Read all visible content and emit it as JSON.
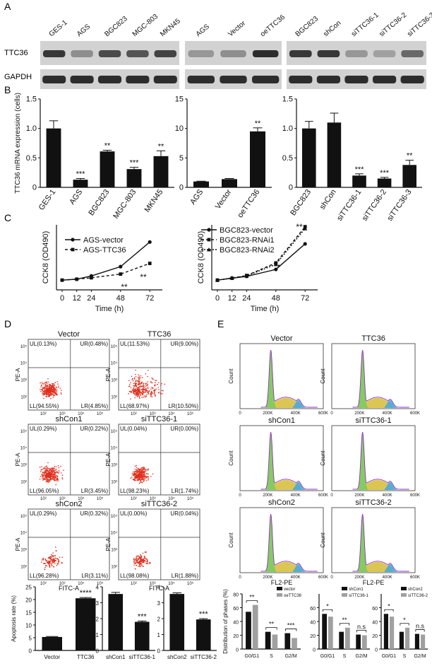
{
  "panel_labels": {
    "a": "A",
    "b": "B",
    "c": "C",
    "d": "D",
    "e": "E"
  },
  "blots": [
    {
      "lanes": [
        "GES-1",
        "AGS",
        "BGC823",
        "MGC-803",
        "MKN45"
      ],
      "ttc36": [
        0.8,
        0.35,
        0.7,
        0.65,
        0.75
      ],
      "gapdh": [
        0.85,
        0.85,
        0.85,
        0.85,
        0.85
      ]
    },
    {
      "lanes": [
        "AGS",
        "Vector",
        "oeTTC36"
      ],
      "ttc36": [
        0.3,
        0.35,
        0.85
      ],
      "gapdh": [
        0.85,
        0.85,
        0.85
      ]
    },
    {
      "lanes": [
        "BGC823",
        "shCon",
        "siTTC36-1",
        "siTTC36-2",
        "siTTC36-3"
      ],
      "ttc36": [
        0.8,
        0.8,
        0.3,
        0.25,
        0.55
      ],
      "gapdh": [
        0.85,
        0.85,
        0.85,
        0.85,
        0.85
      ]
    }
  ],
  "blot_row_labels": {
    "ttc36": "TTC36",
    "gapdh": "GAPDH"
  },
  "chart_data": [
    {
      "id": "B1",
      "type": "bar",
      "ylabel": "TTC36 mRNA expression (cells)",
      "ylim": [
        0,
        1.5
      ],
      "yticks": [
        "0",
        "0.5",
        "1.0",
        "1.5"
      ],
      "categories": [
        "GES-1",
        "AGS",
        "BGC823",
        "MGC-803",
        "MKN45"
      ],
      "values": [
        1.0,
        0.13,
        0.61,
        0.31,
        0.53
      ],
      "errors": [
        0.13,
        0.02,
        0.02,
        0.03,
        0.09
      ],
      "sig": [
        "",
        "***",
        "**",
        "***",
        "**"
      ]
    },
    {
      "id": "B2",
      "type": "bar",
      "ylim": [
        0,
        15
      ],
      "yticks": [
        "0",
        "5",
        "10",
        "15"
      ],
      "categories": [
        "AGS",
        "Vector",
        "oeTTC36"
      ],
      "values": [
        1.0,
        1.4,
        9.5
      ],
      "errors": [
        0.05,
        0.1,
        0.6
      ],
      "sig": [
        "",
        "",
        "**"
      ]
    },
    {
      "id": "B3",
      "type": "bar",
      "ylim": [
        0,
        1.5
      ],
      "yticks": [
        "0",
        "0.5",
        "1.0",
        "1.5"
      ],
      "categories": [
        "BGC823",
        "shCon",
        "siTTC36-1",
        "siTTC36-2",
        "siTTC36-3"
      ],
      "values": [
        1.0,
        1.1,
        0.2,
        0.15,
        0.38
      ],
      "errors": [
        0.12,
        0.16,
        0.03,
        0.02,
        0.08
      ],
      "sig": [
        "",
        "",
        "***",
        "***",
        "**"
      ]
    },
    {
      "id": "C1",
      "type": "line",
      "xlabel": "Time (h)",
      "ylabel": "CCK8 (OD490)",
      "x": [
        0,
        12,
        24,
        48,
        72
      ],
      "series": [
        {
          "name": "AGS-vector",
          "values": [
            2.1,
            2.3,
            3.0,
            5.0,
            10.3
          ]
        },
        {
          "name": "AGS-TTC36",
          "values": [
            2.1,
            2.3,
            2.6,
            3.4,
            5.7
          ]
        }
      ],
      "sig": [
        "**",
        "**"
      ]
    },
    {
      "id": "C2",
      "type": "line",
      "xlabel": "Time (h)",
      "ylabel": "CCK8 (OD490)",
      "x": [
        0,
        12,
        24,
        48,
        72
      ],
      "series": [
        {
          "name": "BGC823-vector",
          "values": [
            2.1,
            2.5,
            2.9,
            4.4,
            9.9
          ]
        },
        {
          "name": "BGC823-RNAi1",
          "values": [
            2.1,
            2.5,
            3.1,
            5.8,
            13.6
          ]
        },
        {
          "name": "BGC823-RNAi2",
          "values": [
            2.1,
            2.6,
            3.0,
            5.5,
            13.2
          ]
        }
      ],
      "sig": [
        "*",
        "**"
      ]
    },
    {
      "id": "D1",
      "type": "bar",
      "ylabel": "Apoptosis rate (%)",
      "ylim": [
        0,
        25
      ],
      "yticks": [
        "0",
        "5",
        "10",
        "15",
        "20",
        "25"
      ],
      "categories": [
        "Vector",
        "TTC36"
      ],
      "values": [
        5.3,
        20.5
      ],
      "errors": [
        0.2,
        0.3
      ],
      "sig": [
        "",
        "****"
      ]
    },
    {
      "id": "D2",
      "type": "bar",
      "ylim": [
        0,
        4
      ],
      "yticks": [
        "0",
        "1",
        "2",
        "3",
        "4"
      ],
      "categories": [
        "shCon1",
        "siTTC36-1"
      ],
      "values": [
        3.55,
        1.8
      ],
      "errors": [
        0.1,
        0.05
      ],
      "sig": [
        "",
        "***"
      ]
    },
    {
      "id": "D3",
      "type": "bar",
      "ylim": [
        0,
        4
      ],
      "yticks": [
        "0",
        "1",
        "2",
        "3",
        "4"
      ],
      "categories": [
        "shCon2",
        "siTTC36-2"
      ],
      "values": [
        3.55,
        1.95
      ],
      "errors": [
        0.07,
        0.05
      ],
      "sig": [
        "",
        "***"
      ]
    },
    {
      "id": "E1",
      "type": "bar",
      "ylabel": "Distribution of phases (%)",
      "ylim": [
        0,
        80
      ],
      "yticks": [
        "0",
        "20",
        "40",
        "60",
        "80"
      ],
      "categories": [
        "G0/G1",
        "S",
        "G2/M"
      ],
      "series": [
        {
          "name": "vector",
          "values": [
            54,
            25,
            23
          ]
        },
        {
          "name": "oeTTC36",
          "values": [
            64,
            21,
            16
          ]
        }
      ],
      "sig": [
        "**",
        "**",
        "***"
      ]
    },
    {
      "id": "E2",
      "type": "bar",
      "ylim": [
        0,
        80
      ],
      "yticks": [
        "0",
        "20",
        "40",
        "60"
      ],
      "categories": [
        "G0/G1",
        "S",
        "G2/M"
      ],
      "series": [
        {
          "name": "shCon1",
          "values": [
            51,
            25,
            21
          ]
        },
        {
          "name": "siTTC36-1",
          "values": [
            47,
            31,
            20
          ]
        }
      ],
      "sig": [
        "*",
        "**",
        "n.s"
      ]
    },
    {
      "id": "E3",
      "type": "bar",
      "ylim": [
        0,
        80
      ],
      "yticks": [
        "0",
        "20",
        "40",
        "60"
      ],
      "categories": [
        "G0/G1",
        "S",
        "G2/M"
      ],
      "series": [
        {
          "name": "shCon2",
          "values": [
            51,
            25,
            22
          ]
        },
        {
          "name": "siTTC36-2",
          "values": [
            47,
            31,
            21
          ]
        }
      ],
      "sig": [
        "*",
        "*",
        "n.s"
      ]
    }
  ],
  "flow": [
    {
      "title": "Vector",
      "UL": "UL(0.13%)",
      "UR": "UR(0.48%)",
      "LL": "LL(94.55%)",
      "LR": "LR(4.85%)",
      "spread": 0.25
    },
    {
      "title": "TTC36",
      "UL": "UL(11.53%)",
      "UR": "UR(9.00%)",
      "LL": "LL(68.97%)",
      "LR": "LR(10.50%)",
      "spread": 0.7
    },
    {
      "title": "shCon1",
      "UL": "UL(0.29%)",
      "UR": "UR(0.22%)",
      "LL": "LL(96.05%)",
      "LR": "LR(3.45%)",
      "spread": 0.3
    },
    {
      "title": "siTTC36-1",
      "UL": "UL(0.04%)",
      "UR": "UR(0.00%)",
      "LL": "LL(98.23%)",
      "LR": "LR(1.74%)",
      "spread": 0.2
    },
    {
      "title": "shCon2",
      "UL": "UL(0.29%)",
      "UR": "UR(0.32%)",
      "LL": "LL(96.28%)",
      "LR": "LR(3.11%)",
      "spread": 0.3
    },
    {
      "title": "siTTC36-2",
      "UL": "UL(0.00%)",
      "UR": "UR(0.04%)",
      "LL": "LL(98.08%)",
      "LR": "LR(1.88%)",
      "spread": 0.2
    }
  ],
  "flow_axes": {
    "x": "FITC-A",
    "y": "PE-A",
    "xticks": [
      "10²",
      "10³",
      "10⁴",
      "10⁵"
    ],
    "yticks": [
      "10²",
      "10³",
      "10⁴",
      "10⁵"
    ]
  },
  "histos": [
    {
      "title": "Vector"
    },
    {
      "title": "TTC36"
    },
    {
      "title": "shCon1"
    },
    {
      "title": "siTTC36-1"
    },
    {
      "title": "shCon2"
    },
    {
      "title": "siTTC36-2"
    }
  ],
  "histo_axes": {
    "y": "Count",
    "x": "FL2-PE",
    "xticks": [
      "0",
      "200K",
      "400K",
      "600K"
    ]
  },
  "colors": {
    "dot": "#e0301e",
    "g1": "#7ec85a",
    "s": "#d8c040",
    "g2": "#4aa8d8",
    "outline": "#9030c0",
    "bar": "#111111",
    "bar2": "#a0a0a0"
  }
}
